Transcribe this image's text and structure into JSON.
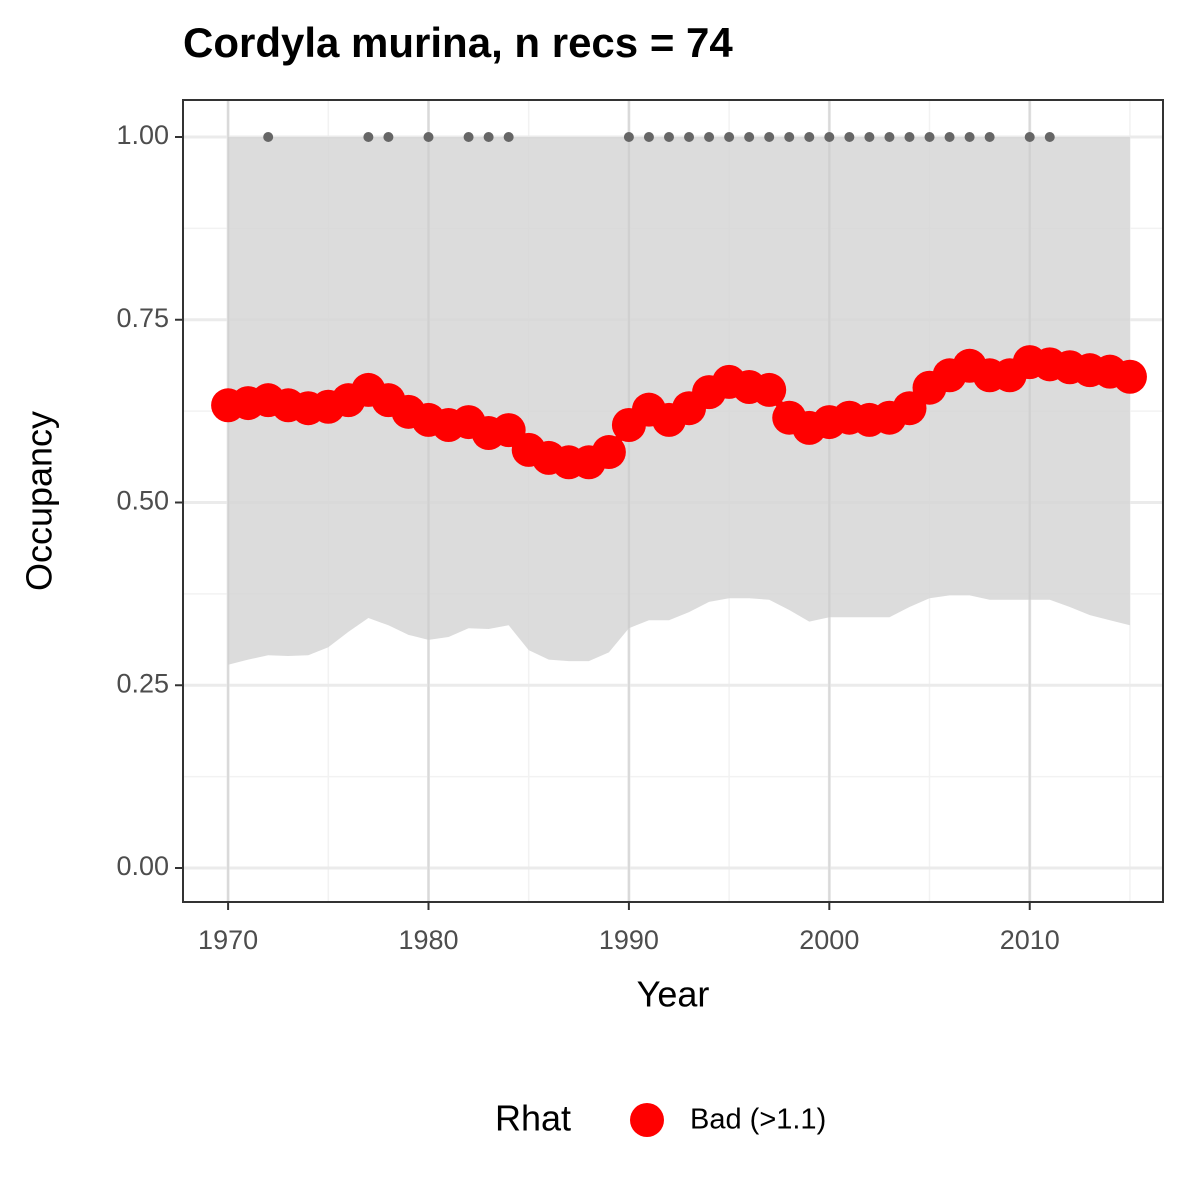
{
  "chart_data": {
    "type": "line",
    "title": "Cordyla murina, n recs = 74",
    "x_label": "Year",
    "y_label": "Occupancy",
    "x": [
      1970,
      1971,
      1972,
      1973,
      1974,
      1975,
      1976,
      1977,
      1978,
      1979,
      1980,
      1981,
      1982,
      1983,
      1984,
      1985,
      1986,
      1987,
      1988,
      1989,
      1990,
      1991,
      1992,
      1993,
      1994,
      1995,
      1996,
      1997,
      1998,
      1999,
      2000,
      2001,
      2002,
      2003,
      2004,
      2005,
      2006,
      2007,
      2008,
      2009,
      2010,
      2011,
      2012,
      2013,
      2014,
      2015
    ],
    "series": [
      {
        "name": "Bad (>1.1)",
        "color": "#ff0000",
        "values": [
          0.633,
          0.636,
          0.64,
          0.633,
          0.629,
          0.631,
          0.64,
          0.654,
          0.64,
          0.624,
          0.613,
          0.606,
          0.61,
          0.595,
          0.599,
          0.572,
          0.561,
          0.555,
          0.555,
          0.569,
          0.606,
          0.627,
          0.613,
          0.629,
          0.651,
          0.665,
          0.658,
          0.654,
          0.616,
          0.602,
          0.61,
          0.616,
          0.613,
          0.616,
          0.629,
          0.657,
          0.674,
          0.687,
          0.674,
          0.674,
          0.692,
          0.689,
          0.685,
          0.681,
          0.679,
          0.672
        ]
      }
    ],
    "band": {
      "color": "#d6d6d6",
      "lower": [
        0.278,
        0.285,
        0.291,
        0.29,
        0.291,
        0.302,
        0.323,
        0.342,
        0.332,
        0.319,
        0.312,
        0.316,
        0.328,
        0.327,
        0.332,
        0.298,
        0.285,
        0.283,
        0.283,
        0.295,
        0.328,
        0.339,
        0.339,
        0.35,
        0.364,
        0.369,
        0.369,
        0.367,
        0.353,
        0.337,
        0.343,
        0.343,
        0.343,
        0.343,
        0.357,
        0.369,
        0.373,
        0.373,
        0.367,
        0.367,
        0.367,
        0.367,
        0.357,
        0.346,
        0.339,
        0.332
      ],
      "upper": [
        1,
        1,
        1,
        1,
        1,
        1,
        1,
        1,
        1,
        1,
        1,
        1,
        1,
        1,
        1,
        1,
        1,
        1,
        1,
        1,
        1,
        1,
        1,
        1,
        1,
        1,
        1,
        1,
        1,
        1,
        1,
        1,
        1,
        1,
        1,
        1,
        1,
        1,
        1,
        1,
        1,
        1,
        1,
        1,
        1,
        1
      ]
    },
    "records": {
      "color": "#666666",
      "x": [
        1972,
        1977,
        1978,
        1980,
        1982,
        1983,
        1984,
        1990,
        1991,
        1992,
        1993,
        1994,
        1995,
        1996,
        1997,
        1998,
        1999,
        2000,
        2001,
        2002,
        2003,
        2004,
        2005,
        2006,
        2007,
        2008,
        2010,
        2011
      ],
      "values": [
        1,
        1,
        1,
        1,
        1,
        1,
        1,
        1,
        1,
        1,
        1,
        1,
        1,
        1,
        1,
        1,
        1,
        1,
        1,
        1,
        1,
        1,
        1,
        1,
        1,
        1,
        1,
        1
      ]
    },
    "legend_title": "Rhat",
    "legend": "bottom",
    "xlim": [
      1967.75,
      2016.65
    ],
    "ylim": [
      -0.0465,
      1.0506
    ],
    "xticks": [
      1970,
      1980,
      1990,
      2000,
      2010
    ],
    "yticks": [
      {
        "value": 0,
        "label": "0.00"
      },
      {
        "value": 0.25,
        "label": "0.25"
      },
      {
        "value": 0.5,
        "label": "0.50"
      },
      {
        "value": 0.75,
        "label": "0.75"
      },
      {
        "value": 1,
        "label": "1.00"
      }
    ],
    "grid": true
  }
}
